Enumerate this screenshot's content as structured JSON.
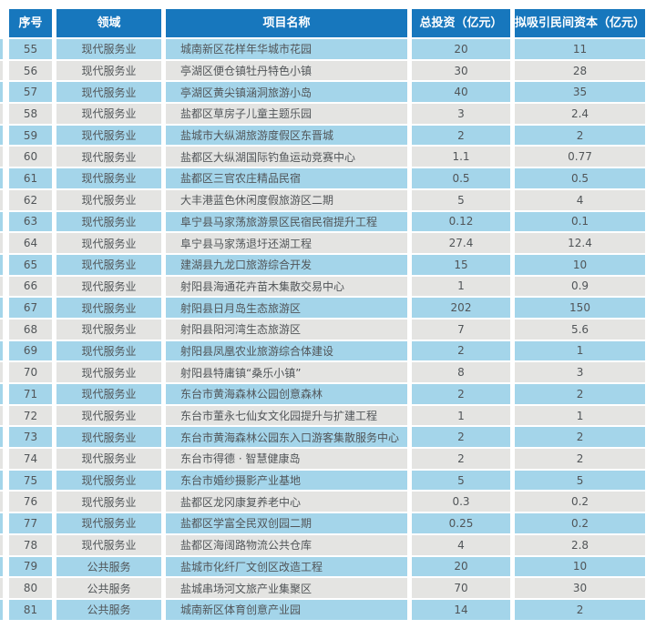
{
  "colors": {
    "header_bg": "#1777bd",
    "row_blue": "#a4d5ea",
    "row_gray": "#e4e4e2",
    "header_text": "#ffffff",
    "body_text": "#515558"
  },
  "table": {
    "headers": [
      "序号",
      "领域",
      "项目名称",
      "总投资（亿元）",
      "拟吸引民间资本（亿元）"
    ],
    "rows": [
      {
        "no": "55",
        "field": "现代服务业",
        "name": "城南新区花样年华城市花园",
        "invest": "20",
        "capital": "11"
      },
      {
        "no": "56",
        "field": "现代服务业",
        "name": "亭湖区便仓镇牡丹特色小镇",
        "invest": "30",
        "capital": "28"
      },
      {
        "no": "57",
        "field": "现代服务业",
        "name": "亭湖区黄尖镇涵洞旅游小岛",
        "invest": "40",
        "capital": "35"
      },
      {
        "no": "58",
        "field": "现代服务业",
        "name": "盐都区草房子儿童主题乐园",
        "invest": "3",
        "capital": "2.4"
      },
      {
        "no": "59",
        "field": "现代服务业",
        "name": "盐城市大纵湖旅游度假区东晋城",
        "invest": "2",
        "capital": "2"
      },
      {
        "no": "60",
        "field": "现代服务业",
        "name": "盐都区大纵湖国际钓鱼运动竞赛中心",
        "invest": "1.1",
        "capital": "0.77"
      },
      {
        "no": "61",
        "field": "现代服务业",
        "name": "盐都区三官农庄精品民宿",
        "invest": "0.5",
        "capital": "0.5"
      },
      {
        "no": "62",
        "field": "现代服务业",
        "name": "大丰港蓝色休闲度假旅游区二期",
        "invest": "5",
        "capital": "4"
      },
      {
        "no": "63",
        "field": "现代服务业",
        "name": "阜宁县马家荡旅游景区民宿民宿提升工程",
        "invest": "0.12",
        "capital": "0.1"
      },
      {
        "no": "64",
        "field": "现代服务业",
        "name": "阜宁县马家荡退圩还湖工程",
        "invest": "27.4",
        "capital": "12.4"
      },
      {
        "no": "65",
        "field": "现代服务业",
        "name": "建湖县九龙口旅游综合开发",
        "invest": "15",
        "capital": "10"
      },
      {
        "no": "66",
        "field": "现代服务业",
        "name": "射阳县海通花卉苗木集散交易中心",
        "invest": "1",
        "capital": "0.9"
      },
      {
        "no": "67",
        "field": "现代服务业",
        "name": "射阳县日月岛生态旅游区",
        "invest": "202",
        "capital": "150"
      },
      {
        "no": "68",
        "field": "现代服务业",
        "name": "射阳县阳河湾生态旅游区",
        "invest": "7",
        "capital": "5.6"
      },
      {
        "no": "69",
        "field": "现代服务业",
        "name": "射阳县凤凰农业旅游综合体建设",
        "invest": "2",
        "capital": "1"
      },
      {
        "no": "70",
        "field": "现代服务业",
        "name": "射阳县特庸镇“桑乐小镇”",
        "invest": "8",
        "capital": "3"
      },
      {
        "no": "71",
        "field": "现代服务业",
        "name": "东台市黄海森林公园创意森林",
        "invest": "2",
        "capital": "2"
      },
      {
        "no": "72",
        "field": "现代服务业",
        "name": "东台市董永七仙女文化园提升与扩建工程",
        "invest": "1",
        "capital": "1"
      },
      {
        "no": "73",
        "field": "现代服务业",
        "name": "东台市黄海森林公园东入口游客集散服务中心",
        "invest": "2",
        "capital": "2"
      },
      {
        "no": "74",
        "field": "现代服务业",
        "name": "东台市得德 · 智慧健康岛",
        "invest": "2",
        "capital": "2"
      },
      {
        "no": "75",
        "field": "现代服务业",
        "name": "东台市婚纱摄影产业基地",
        "invest": "5",
        "capital": "5"
      },
      {
        "no": "76",
        "field": "现代服务业",
        "name": "盐都区龙冈康复养老中心",
        "invest": "0.3",
        "capital": "0.2"
      },
      {
        "no": "77",
        "field": "现代服务业",
        "name": "盐都区学富全民双创园二期",
        "invest": "0.25",
        "capital": "0.2"
      },
      {
        "no": "78",
        "field": "现代服务业",
        "name": "盐都区海阔路物流公共仓库",
        "invest": "4",
        "capital": "2.8"
      },
      {
        "no": "79",
        "field": "公共服务",
        "name": "盐城市化纤厂文创区改造工程",
        "invest": "20",
        "capital": "10"
      },
      {
        "no": "80",
        "field": "公共服务",
        "name": "盐城串场河文旅产业集聚区",
        "invest": "70",
        "capital": "30"
      },
      {
        "no": "81",
        "field": "公共服务",
        "name": "城南新区体育创意产业园",
        "invest": "14",
        "capital": "2"
      }
    ]
  }
}
